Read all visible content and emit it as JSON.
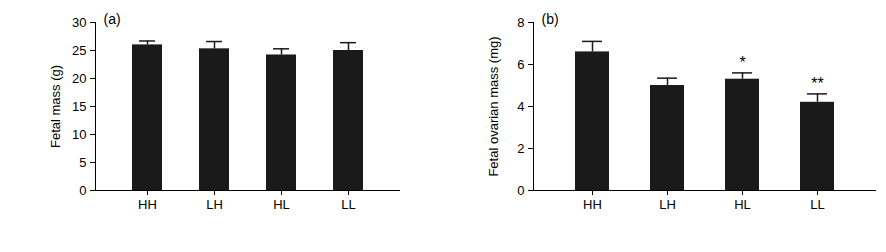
{
  "chart_data": [
    {
      "type": "bar",
      "title": "(a)",
      "ylabel": "Fetal mass (g)",
      "categories": [
        "HH",
        "LH",
        "HL",
        "LL"
      ],
      "values": [
        26.0,
        25.3,
        24.2,
        25.0
      ],
      "error": [
        0.7,
        1.3,
        1.1,
        1.4
      ],
      "color": "#1a1a1a",
      "ylim": [
        0,
        30
      ],
      "yticks": [
        0,
        5,
        10,
        15,
        20,
        25,
        30
      ],
      "grid": false
    },
    {
      "type": "bar",
      "title": "(b)",
      "ylabel": "Fetal ovarian mass (mg)",
      "categories": [
        "HH",
        "LH",
        "HL",
        "LL"
      ],
      "values": [
        6.6,
        5.0,
        5.3,
        4.2
      ],
      "error": [
        0.5,
        0.35,
        0.3,
        0.4
      ],
      "annotations": [
        null,
        null,
        "*",
        "**"
      ],
      "color": "#1a1a1a",
      "ylim": [
        0,
        8
      ],
      "yticks": [
        0,
        2,
        4,
        6,
        8
      ],
      "grid": false
    }
  ]
}
